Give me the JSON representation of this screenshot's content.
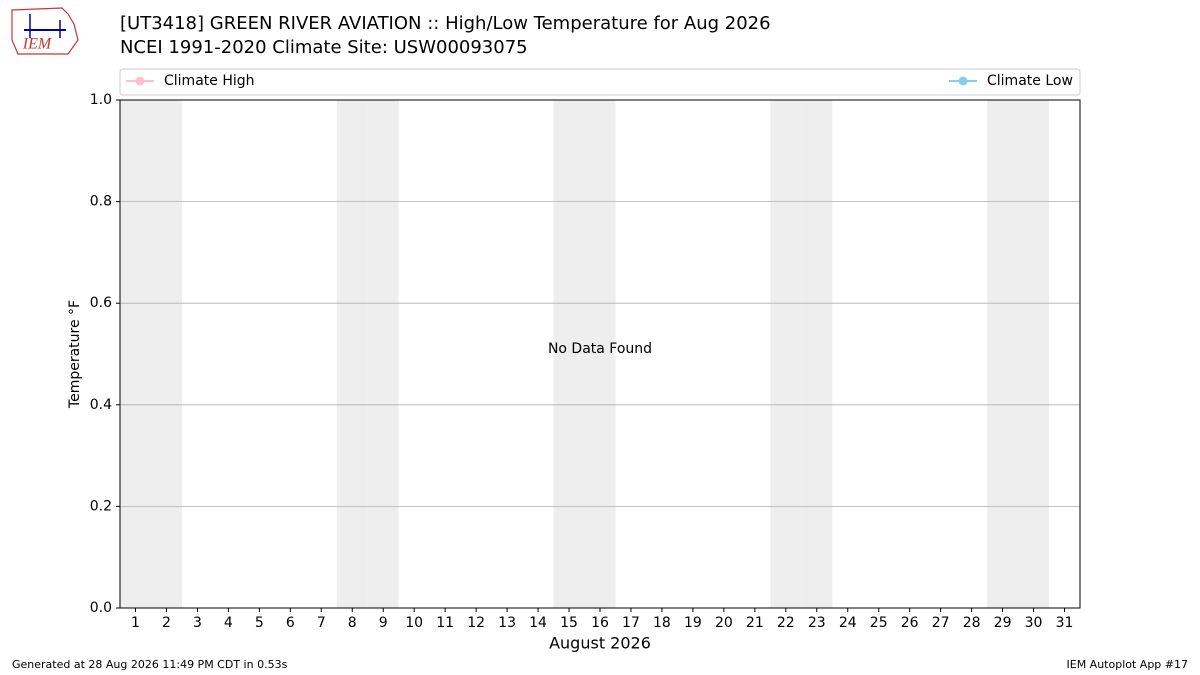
{
  "chart_data": {
    "type": "line",
    "logo_text": "IEM",
    "title": "[UT3418] GREEN RIVER AVIATION :: High/Low Temperature for Aug 2026",
    "subtitle": "NCEI 1991-2020 Climate Site: USW00093075",
    "annotation": "No Data Found",
    "xlabel": "August 2026",
    "ylabel": "Temperature °F",
    "x": [
      1,
      2,
      3,
      4,
      5,
      6,
      7,
      8,
      9,
      10,
      11,
      12,
      13,
      14,
      15,
      16,
      17,
      18,
      19,
      20,
      21,
      22,
      23,
      24,
      25,
      26,
      27,
      28,
      29,
      30,
      31
    ],
    "series": [
      {
        "name": "Climate High",
        "color": "#ffc0cb",
        "values": [
          null,
          null,
          null,
          null,
          null,
          null,
          null,
          null,
          null,
          null,
          null,
          null,
          null,
          null,
          null,
          null,
          null,
          null,
          null,
          null,
          null,
          null,
          null,
          null,
          null,
          null,
          null,
          null,
          null,
          null,
          null
        ]
      },
      {
        "name": "Climate Low",
        "color": "#87ceeb",
        "values": [
          null,
          null,
          null,
          null,
          null,
          null,
          null,
          null,
          null,
          null,
          null,
          null,
          null,
          null,
          null,
          null,
          null,
          null,
          null,
          null,
          null,
          null,
          null,
          null,
          null,
          null,
          null,
          null,
          null,
          null,
          null
        ]
      }
    ],
    "shaded_days": [
      1,
      2,
      8,
      9,
      15,
      16,
      22,
      23,
      29,
      30
    ],
    "shade_color": "#eeeeee",
    "xlim": [
      0.5,
      31.5
    ],
    "xticks": [
      1,
      2,
      3,
      4,
      5,
      6,
      7,
      8,
      9,
      10,
      11,
      12,
      13,
      14,
      15,
      16,
      17,
      18,
      19,
      20,
      21,
      22,
      23,
      24,
      25,
      26,
      27,
      28,
      29,
      30,
      31
    ],
    "ylim": [
      0,
      1
    ],
    "yticks": [
      {
        "value": 0,
        "label": "0.0"
      },
      {
        "value": 0.2,
        "label": "0.2"
      },
      {
        "value": 0.4,
        "label": "0.4"
      },
      {
        "value": 0.6,
        "label": "0.6"
      },
      {
        "value": 0.8,
        "label": "0.8"
      },
      {
        "value": 1,
        "label": "1.0"
      }
    ],
    "grid": true,
    "footer_left": "Generated at 28 Aug 2026 11:49 PM CDT in 0.53s",
    "footer_right": "IEM Autoplot App #17"
  }
}
